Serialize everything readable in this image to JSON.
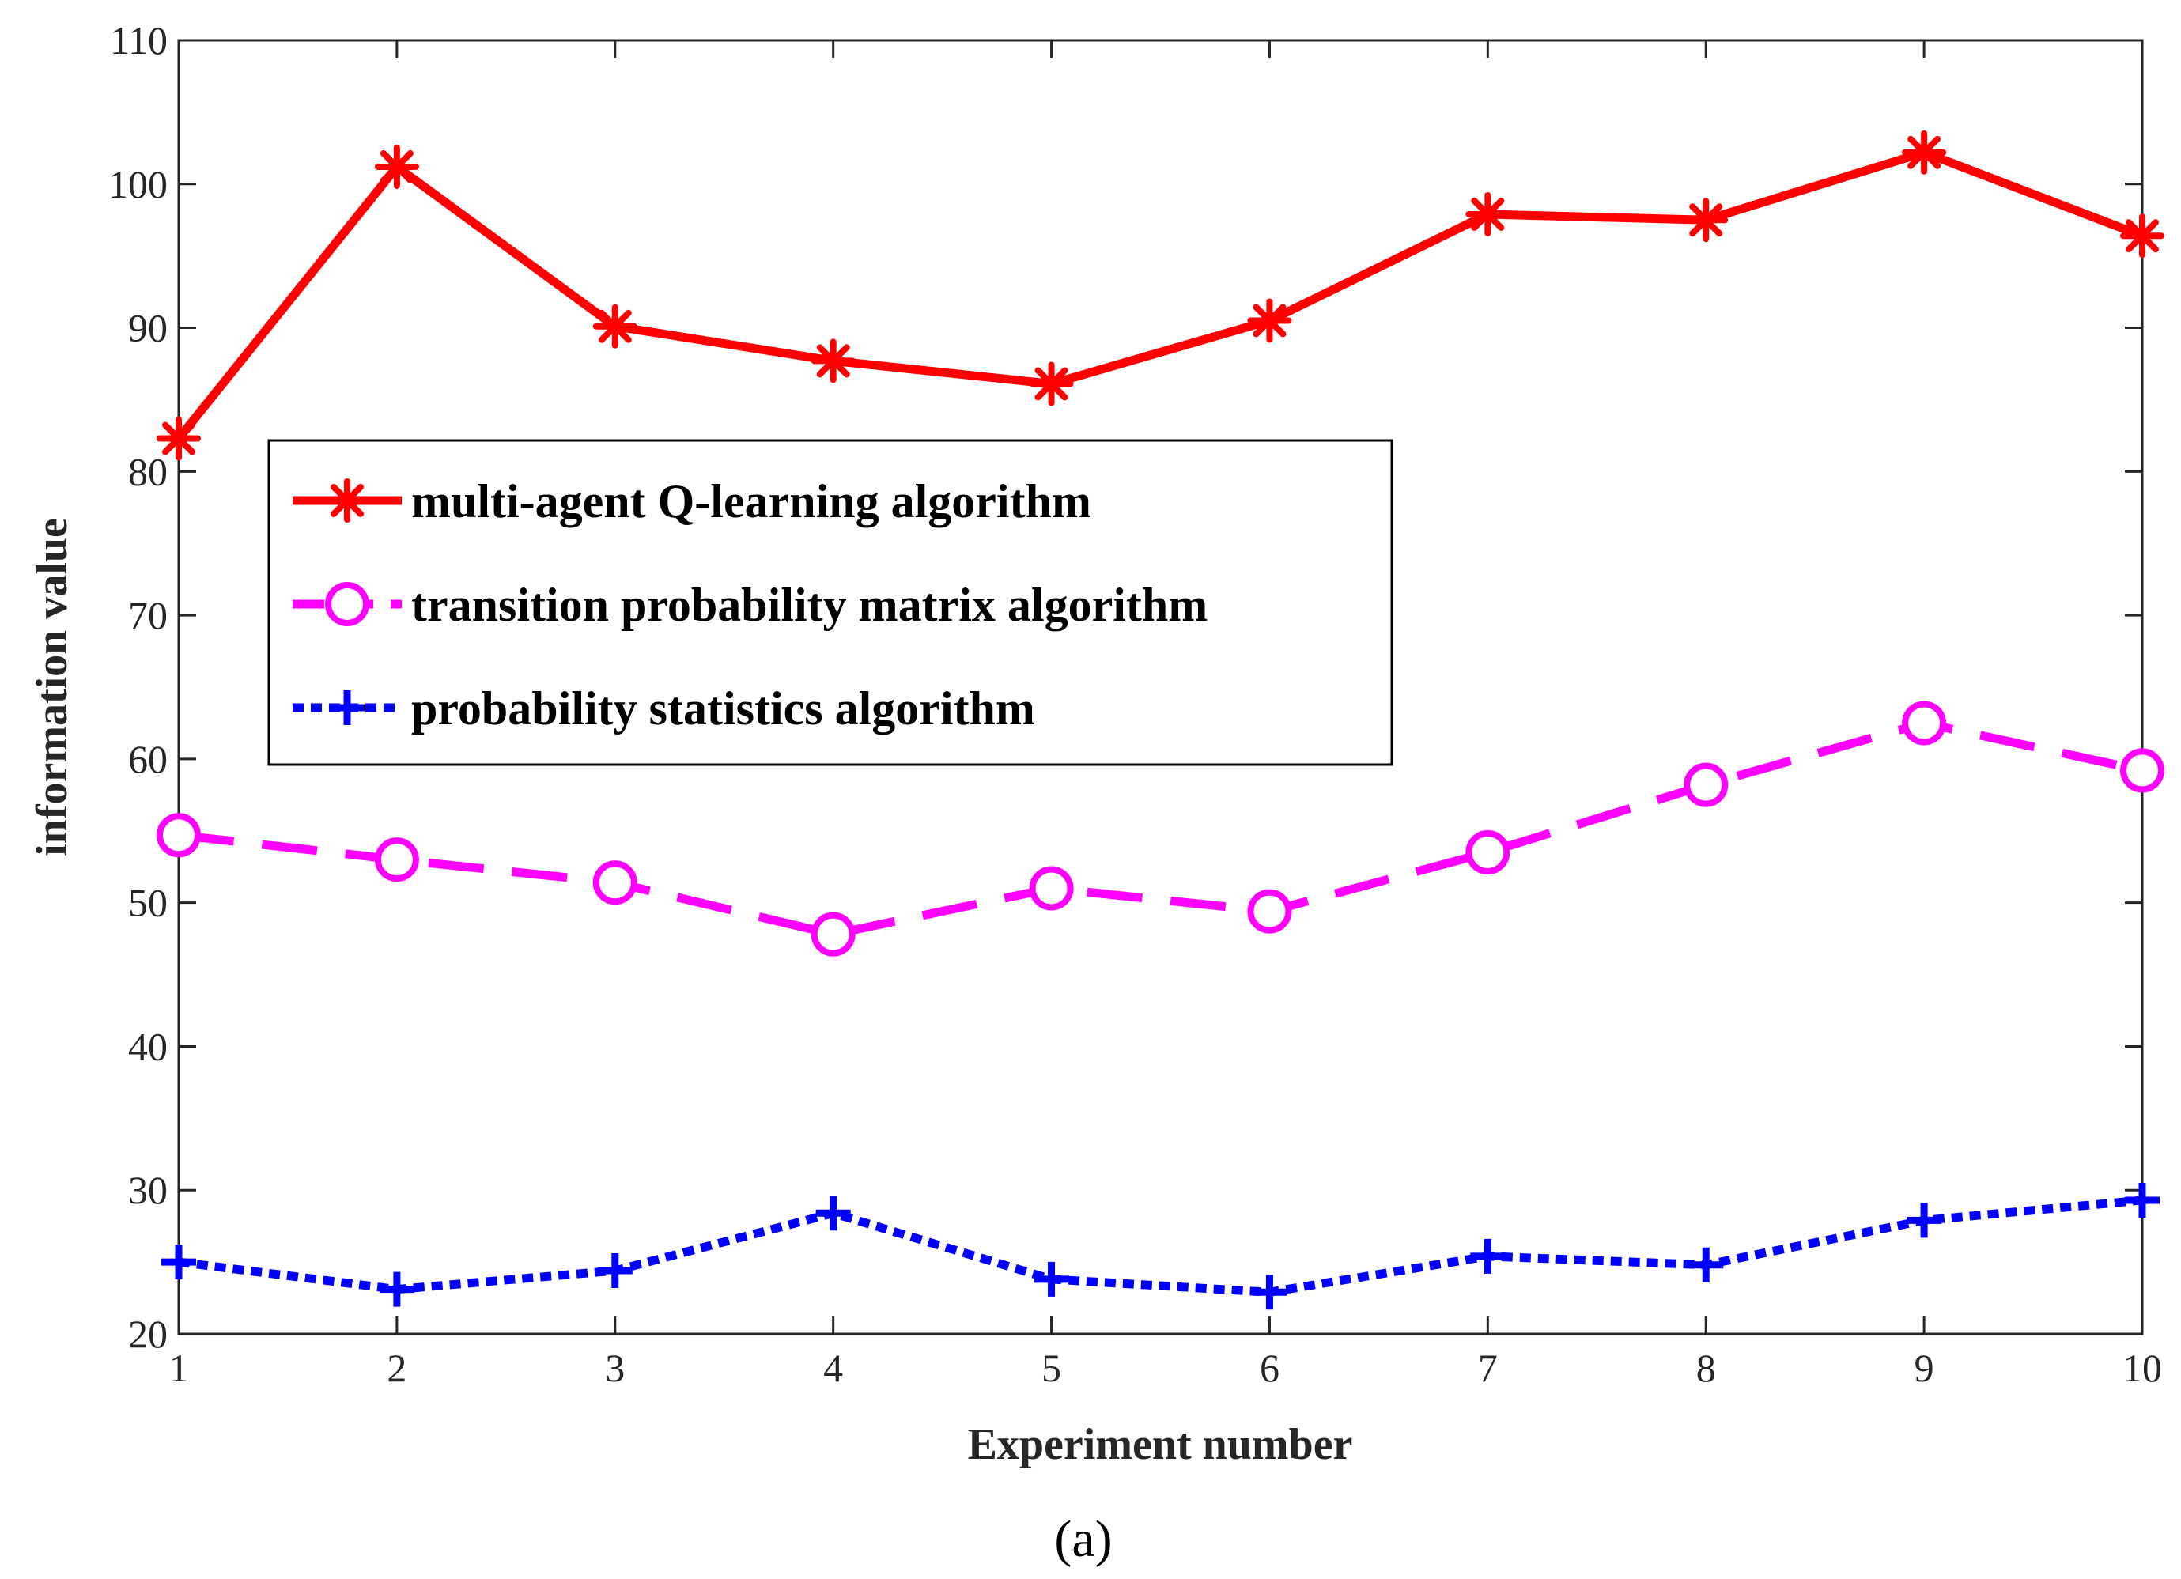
{
  "chart_data": {
    "type": "line",
    "title": "",
    "xlabel": "Experiment number",
    "ylabel": "information value",
    "caption": "(a)",
    "x": [
      1,
      2,
      3,
      4,
      5,
      6,
      7,
      8,
      9,
      10
    ],
    "xlim": [
      1,
      10
    ],
    "ylim": [
      20,
      110
    ],
    "xticks": [
      1,
      2,
      3,
      4,
      5,
      6,
      7,
      8,
      9,
      10
    ],
    "yticks": [
      20,
      30,
      40,
      50,
      60,
      70,
      80,
      90,
      100,
      110
    ],
    "grid": false,
    "legend_position": "upper-left",
    "series": [
      {
        "name": "multi-agent Q-learning algorithm",
        "color": "#ff0000",
        "line_style": "solid",
        "marker": "asterisk",
        "values": [
          82.3,
          101.2,
          90.1,
          87.7,
          86.1,
          90.5,
          97.9,
          97.5,
          102.2,
          96.4
        ]
      },
      {
        "name": "transition probability matrix algorithm",
        "color": "#ff00ff",
        "line_style": "dashed",
        "marker": "circle",
        "values": [
          54.7,
          53.0,
          51.4,
          47.8,
          51.0,
          49.4,
          53.5,
          58.2,
          62.5,
          59.2
        ]
      },
      {
        "name": "probability statistics algorithm",
        "color": "#0000ff",
        "line_style": "dotted",
        "marker": "plus",
        "values": [
          25.0,
          23.1,
          24.4,
          28.4,
          23.8,
          22.9,
          25.4,
          24.8,
          27.9,
          29.3
        ]
      }
    ]
  }
}
